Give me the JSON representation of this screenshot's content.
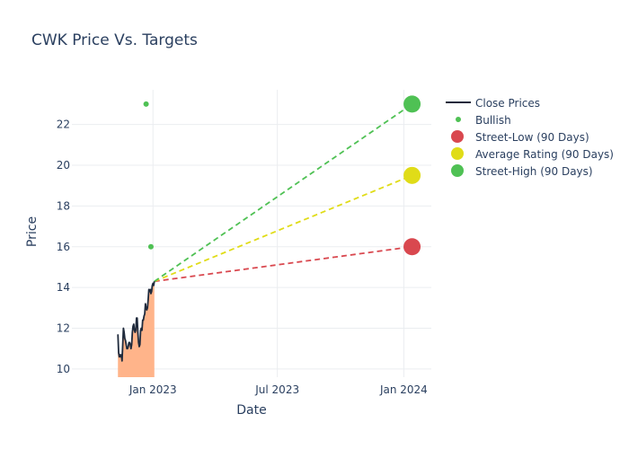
{
  "chart_data": {
    "type": "line",
    "title": "CWK Price Vs. Targets",
    "xlabel": "Date",
    "ylabel": "Price",
    "xlim": [
      "2022-09-05",
      "2024-02-10"
    ],
    "ylim": [
      9.6,
      23.7
    ],
    "grid": true,
    "legend_position": "top-right",
    "x_ticks": [
      {
        "date": "2023-01-01",
        "label": "Jan 2023"
      },
      {
        "date": "2023-07-01",
        "label": "Jul 2023"
      },
      {
        "date": "2024-01-01",
        "label": "Jan 2024"
      }
    ],
    "y_ticks": [
      10,
      12,
      14,
      16,
      18,
      20,
      22
    ],
    "colors": {
      "close": "#1f2a3c",
      "fill": "#ffb48a",
      "bullish": "#4fc154",
      "low": "#d9484f",
      "avg": "#e0dc18",
      "high": "#4fc154",
      "text": "#2a3f5f",
      "grid": "#ebedf0"
    },
    "close_series": {
      "name": "Close Prices",
      "points": [
        [
          "2022-11-11",
          11.7
        ],
        [
          "2022-11-12",
          10.8
        ],
        [
          "2022-11-13",
          10.6
        ],
        [
          "2022-11-14",
          10.7
        ],
        [
          "2022-11-15",
          10.6
        ],
        [
          "2022-11-16",
          10.7
        ],
        [
          "2022-11-17",
          10.4
        ],
        [
          "2022-11-18",
          11.2
        ],
        [
          "2022-11-19",
          12.0
        ],
        [
          "2022-11-20",
          11.8
        ],
        [
          "2022-11-21",
          11.5
        ],
        [
          "2022-11-22",
          11.4
        ],
        [
          "2022-11-23",
          11.2
        ],
        [
          "2022-11-24",
          11.0
        ],
        [
          "2022-11-25",
          11.0
        ],
        [
          "2022-11-26",
          11.1
        ],
        [
          "2022-11-27",
          11.3
        ],
        [
          "2022-11-28",
          11.3
        ],
        [
          "2022-11-29",
          11.2
        ],
        [
          "2022-11-30",
          11.0
        ],
        [
          "2022-12-01",
          11.2
        ],
        [
          "2022-12-02",
          11.8
        ],
        [
          "2022-12-03",
          12.1
        ],
        [
          "2022-12-04",
          12.2
        ],
        [
          "2022-12-05",
          11.9
        ],
        [
          "2022-12-06",
          11.8
        ],
        [
          "2022-12-07",
          11.9
        ],
        [
          "2022-12-08",
          12.5
        ],
        [
          "2022-12-09",
          12.5
        ],
        [
          "2022-12-10",
          11.8
        ],
        [
          "2022-12-11",
          11.3
        ],
        [
          "2022-12-12",
          11.1
        ],
        [
          "2022-12-13",
          11.2
        ],
        [
          "2022-12-14",
          11.9
        ],
        [
          "2022-12-15",
          12.0
        ],
        [
          "2022-12-16",
          11.9
        ],
        [
          "2022-12-17",
          12.4
        ],
        [
          "2022-12-18",
          12.4
        ],
        [
          "2022-12-19",
          12.6
        ],
        [
          "2022-12-20",
          12.7
        ],
        [
          "2022-12-21",
          13.2
        ],
        [
          "2022-12-22",
          13.0
        ],
        [
          "2022-12-23",
          12.9
        ],
        [
          "2022-12-24",
          13.0
        ],
        [
          "2022-12-25",
          13.4
        ],
        [
          "2022-12-26",
          13.9
        ],
        [
          "2022-12-27",
          13.8
        ],
        [
          "2022-12-28",
          13.9
        ],
        [
          "2022-12-29",
          13.7
        ],
        [
          "2022-12-30",
          13.8
        ],
        [
          "2022-12-31",
          14.1
        ],
        [
          "2023-01-01",
          14.2
        ],
        [
          "2023-01-02",
          14.1
        ],
        [
          "2023-01-03",
          14.3
        ]
      ]
    },
    "bullish": {
      "name": "Bullish",
      "points": [
        [
          "2022-12-22",
          23.0
        ],
        [
          "2022-12-29",
          16.0
        ]
      ]
    },
    "targets": {
      "origin": [
        "2023-01-03",
        14.3
      ],
      "target_date": "2024-01-13",
      "series": [
        {
          "name": "Street-Low (90 Days)",
          "value": 16.0,
          "color_key": "low"
        },
        {
          "name": "Average Rating (90 Days)",
          "value": 19.5,
          "color_key": "avg"
        },
        {
          "name": "Street-High (90 Days)",
          "value": 23.0,
          "color_key": "high"
        }
      ]
    }
  }
}
